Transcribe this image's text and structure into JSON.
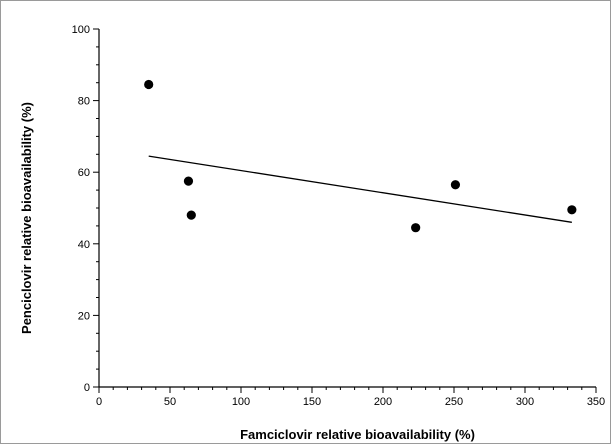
{
  "chart_data": {
    "type": "scatter",
    "xlabel": "Famciclovir relative bioavailability (%)",
    "ylabel": "Penciclovir relative bioavailability (%)",
    "xlim": [
      0,
      350
    ],
    "ylim": [
      0,
      100
    ],
    "xticks": [
      0,
      50,
      100,
      150,
      200,
      250,
      300,
      350
    ],
    "yticks": [
      0,
      20,
      40,
      60,
      80,
      100
    ],
    "x_minor_step": 10,
    "y_minor_step": 5,
    "grid": false,
    "points": [
      {
        "x": 35,
        "y": 84.5
      },
      {
        "x": 63,
        "y": 57.5
      },
      {
        "x": 65,
        "y": 48
      },
      {
        "x": 223,
        "y": 44.5
      },
      {
        "x": 251,
        "y": 56.5
      },
      {
        "x": 333,
        "y": 49.5
      }
    ],
    "trendline": {
      "x": [
        35,
        333
      ],
      "y": [
        64.5,
        46.0
      ]
    },
    "colors": {
      "points": "#000000",
      "line": "#000000",
      "frame": "#9a9a9a"
    }
  }
}
